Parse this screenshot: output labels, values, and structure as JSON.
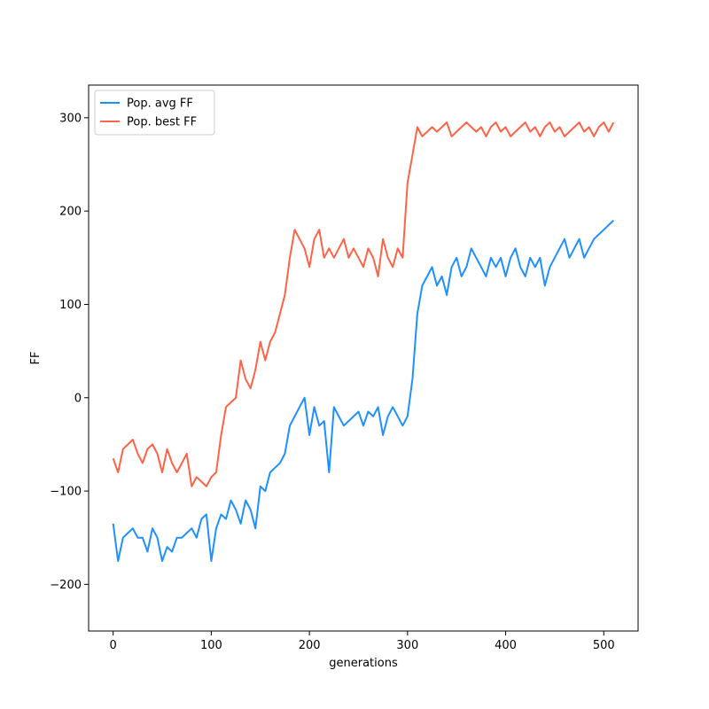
{
  "chart_data": {
    "type": "line",
    "title": "",
    "xlabel": "generations",
    "ylabel": "FF",
    "xlim": [
      -25,
      535
    ],
    "ylim": [
      -250,
      335
    ],
    "xticks": [
      0,
      100,
      200,
      300,
      400,
      500
    ],
    "yticks": [
      -200,
      -100,
      0,
      100,
      200,
      300
    ],
    "grid": false,
    "legend_position": "upper left",
    "colors": {
      "avg": "#1e90ff",
      "best": "#ff6347"
    },
    "series": [
      {
        "name": "Pop. avg FF",
        "color": "#1e90ff",
        "x": [
          0,
          5,
          10,
          15,
          20,
          25,
          30,
          35,
          40,
          45,
          50,
          55,
          60,
          65,
          70,
          75,
          80,
          85,
          90,
          95,
          100,
          105,
          110,
          115,
          120,
          125,
          130,
          135,
          140,
          145,
          150,
          155,
          160,
          165,
          170,
          175,
          180,
          185,
          190,
          195,
          200,
          205,
          210,
          215,
          220,
          225,
          230,
          235,
          240,
          245,
          250,
          255,
          260,
          265,
          270,
          275,
          280,
          285,
          290,
          295,
          300,
          305,
          310,
          315,
          320,
          325,
          330,
          335,
          340,
          345,
          350,
          355,
          360,
          365,
          370,
          375,
          380,
          385,
          390,
          395,
          400,
          405,
          410,
          415,
          420,
          425,
          430,
          435,
          440,
          445,
          450,
          455,
          460,
          465,
          470,
          475,
          480,
          485,
          490,
          495,
          500,
          505,
          510
        ],
        "y": [
          -135,
          -175,
          -150,
          -145,
          -140,
          -150,
          -150,
          -165,
          -140,
          -150,
          -175,
          -160,
          -165,
          -150,
          -150,
          -145,
          -140,
          -150,
          -130,
          -125,
          -175,
          -140,
          -125,
          -130,
          -110,
          -120,
          -135,
          -110,
          -120,
          -140,
          -95,
          -100,
          -80,
          -75,
          -70,
          -60,
          -30,
          -20,
          -10,
          0,
          -40,
          -10,
          -30,
          -25,
          -80,
          -10,
          -20,
          -30,
          -25,
          -20,
          -15,
          -30,
          -15,
          -20,
          -10,
          -40,
          -20,
          -10,
          -20,
          -30,
          -20,
          20,
          90,
          120,
          130,
          140,
          120,
          130,
          110,
          140,
          150,
          130,
          140,
          160,
          150,
          140,
          130,
          150,
          140,
          150,
          130,
          150,
          160,
          140,
          130,
          150,
          140,
          150,
          120,
          140,
          150,
          160,
          170,
          150,
          160,
          170,
          150,
          160,
          170,
          175,
          180,
          185,
          190
        ]
      },
      {
        "name": "Pop. best FF",
        "color": "#ff6347",
        "x": [
          0,
          5,
          10,
          15,
          20,
          25,
          30,
          35,
          40,
          45,
          50,
          55,
          60,
          65,
          70,
          75,
          80,
          85,
          90,
          95,
          100,
          105,
          110,
          115,
          120,
          125,
          130,
          135,
          140,
          145,
          150,
          155,
          160,
          165,
          170,
          175,
          180,
          185,
          190,
          195,
          200,
          205,
          210,
          215,
          220,
          225,
          230,
          235,
          240,
          245,
          250,
          255,
          260,
          265,
          270,
          275,
          280,
          285,
          290,
          295,
          300,
          305,
          310,
          315,
          320,
          325,
          330,
          335,
          340,
          345,
          350,
          355,
          360,
          365,
          370,
          375,
          380,
          385,
          390,
          395,
          400,
          405,
          410,
          415,
          420,
          425,
          430,
          435,
          440,
          445,
          450,
          455,
          460,
          465,
          470,
          475,
          480,
          485,
          490,
          495,
          500,
          505,
          510
        ],
        "y": [
          -65,
          -80,
          -55,
          -50,
          -45,
          -60,
          -70,
          -55,
          -50,
          -60,
          -80,
          -55,
          -70,
          -80,
          -70,
          -60,
          -95,
          -85,
          -90,
          -95,
          -85,
          -80,
          -40,
          -10,
          -5,
          0,
          40,
          20,
          10,
          30,
          60,
          40,
          60,
          70,
          90,
          110,
          150,
          180,
          170,
          160,
          140,
          170,
          180,
          150,
          160,
          150,
          160,
          170,
          150,
          160,
          150,
          140,
          160,
          150,
          130,
          170,
          150,
          140,
          160,
          150,
          230,
          260,
          290,
          280,
          285,
          290,
          285,
          290,
          295,
          280,
          285,
          290,
          295,
          290,
          285,
          290,
          280,
          290,
          295,
          285,
          290,
          280,
          285,
          290,
          295,
          285,
          290,
          280,
          290,
          295,
          285,
          290,
          280,
          285,
          290,
          295,
          285,
          290,
          280,
          290,
          295,
          285,
          295
        ]
      }
    ]
  }
}
